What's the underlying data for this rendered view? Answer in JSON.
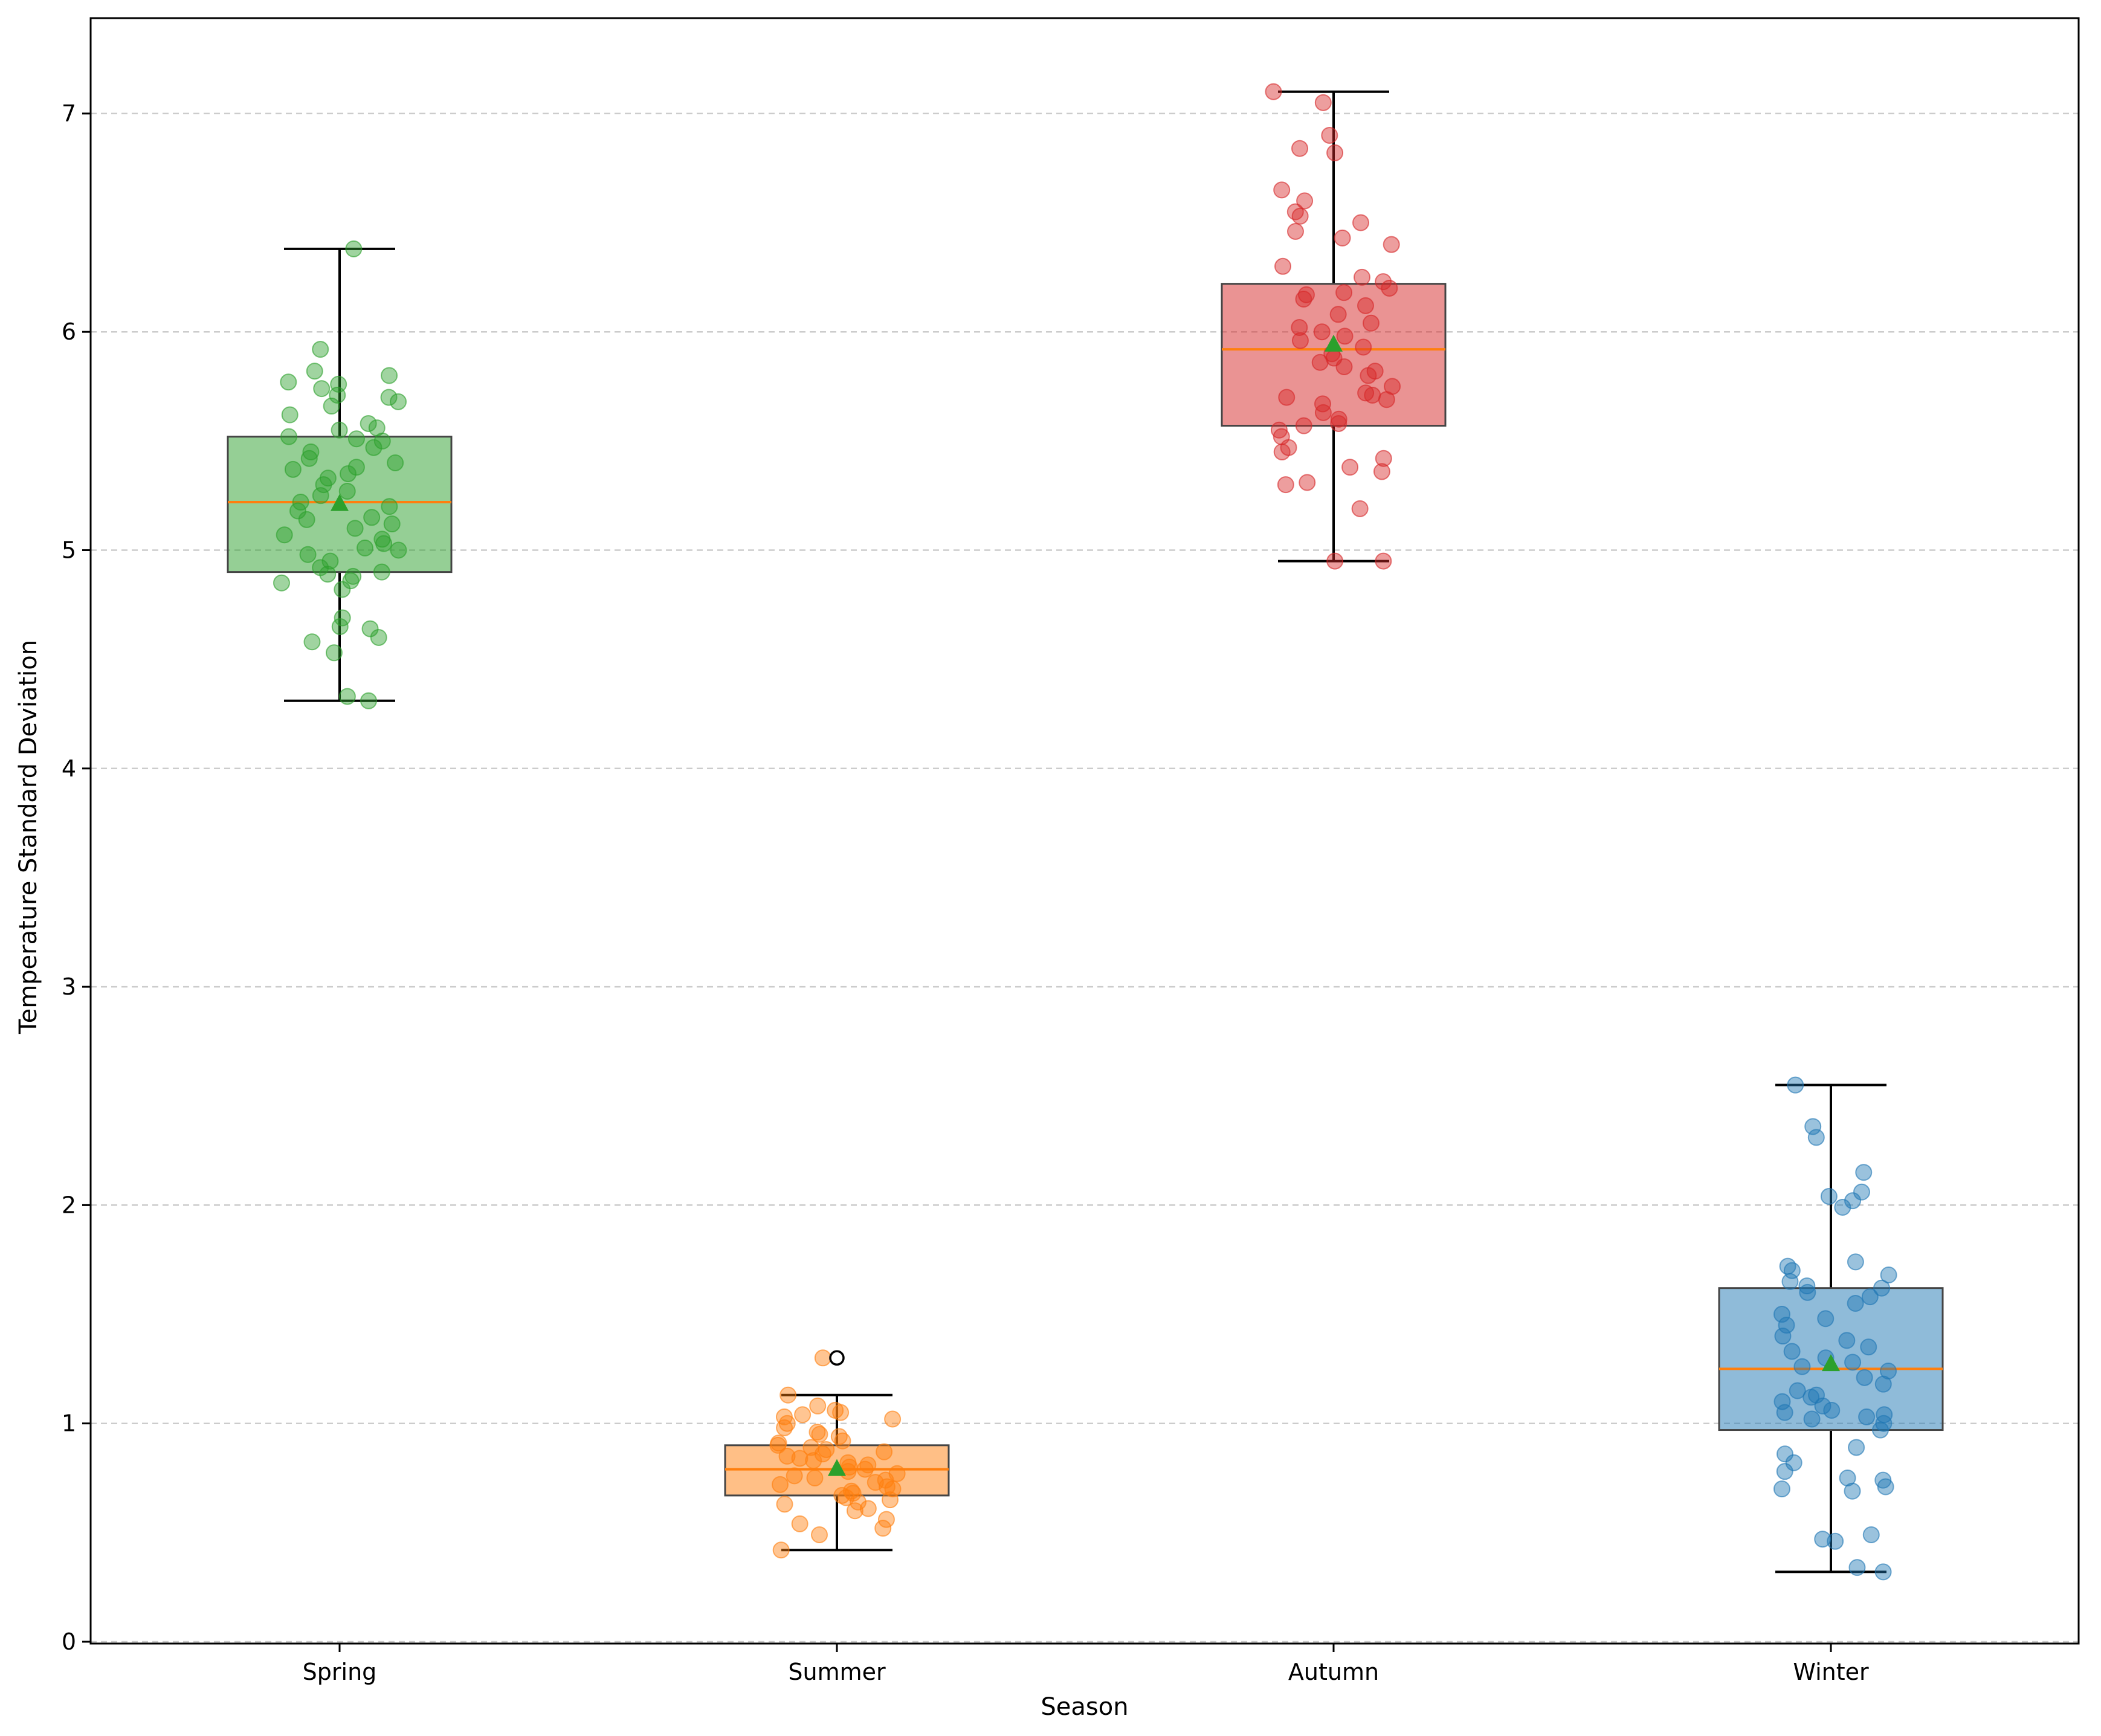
{
  "chart_data": {
    "type": "box",
    "title": "",
    "xlabel": "Season",
    "ylabel": "Temperature Standard Deviation",
    "ylim": [
      0,
      7.45
    ],
    "yticks": [
      0,
      1,
      2,
      3,
      4,
      5,
      6,
      7
    ],
    "ytick_labels": [
      "0",
      "1",
      "2",
      "3",
      "4",
      "5",
      "6",
      "7"
    ],
    "grid": "y-dashed",
    "categories": [
      "Spring",
      "Summer",
      "Autumn",
      "Winter"
    ],
    "series": [
      {
        "name": "Spring",
        "color": "#2ca02c",
        "whisker_low": 4.31,
        "q1": 4.9,
        "median": 5.22,
        "q3": 5.52,
        "whisker_high": 6.38,
        "mean": 5.21,
        "outliers": [],
        "points": [
          4.31,
          4.33,
          4.53,
          4.58,
          4.6,
          4.64,
          4.65,
          4.69,
          4.82,
          4.85,
          4.86,
          4.88,
          4.89,
          4.9,
          4.92,
          4.95,
          4.98,
          5.0,
          5.01,
          5.03,
          5.05,
          5.07,
          5.1,
          5.12,
          5.14,
          5.15,
          5.18,
          5.2,
          5.22,
          5.25,
          5.27,
          5.3,
          5.33,
          5.35,
          5.37,
          5.38,
          5.4,
          5.42,
          5.45,
          5.47,
          5.5,
          5.51,
          5.52,
          5.55,
          5.56,
          5.58,
          5.62,
          5.66,
          5.68,
          5.7,
          5.71,
          5.74,
          5.76,
          5.77,
          5.8,
          5.82,
          5.92,
          6.38
        ]
      },
      {
        "name": "Summer",
        "color": "#ff7f0e",
        "whisker_low": 0.42,
        "q1": 0.67,
        "median": 0.79,
        "q3": 0.9,
        "whisker_high": 1.13,
        "mean": 0.79,
        "outliers": [
          1.3
        ],
        "points": [
          0.42,
          0.49,
          0.52,
          0.54,
          0.56,
          0.6,
          0.61,
          0.63,
          0.64,
          0.65,
          0.66,
          0.67,
          0.68,
          0.69,
          0.7,
          0.71,
          0.72,
          0.73,
          0.74,
          0.75,
          0.76,
          0.77,
          0.78,
          0.79,
          0.8,
          0.81,
          0.82,
          0.83,
          0.84,
          0.85,
          0.86,
          0.87,
          0.88,
          0.89,
          0.9,
          0.91,
          0.92,
          0.94,
          0.95,
          0.96,
          0.98,
          1.0,
          1.02,
          1.03,
          1.04,
          1.05,
          1.06,
          1.08,
          1.13,
          1.3
        ]
      },
      {
        "name": "Autumn",
        "color": "#d62728",
        "whisker_low": 4.95,
        "q1": 5.57,
        "median": 5.92,
        "q3": 6.22,
        "whisker_high": 7.1,
        "mean": 5.94,
        "outliers": [],
        "points": [
          4.95,
          4.95,
          5.19,
          5.3,
          5.31,
          5.36,
          5.38,
          5.42,
          5.45,
          5.47,
          5.52,
          5.55,
          5.57,
          5.58,
          5.6,
          5.63,
          5.67,
          5.69,
          5.7,
          5.71,
          5.72,
          5.75,
          5.8,
          5.82,
          5.84,
          5.86,
          5.88,
          5.9,
          5.93,
          5.96,
          5.98,
          6.0,
          6.02,
          6.04,
          6.08,
          6.12,
          6.15,
          6.17,
          6.18,
          6.2,
          6.23,
          6.25,
          6.3,
          6.4,
          6.43,
          6.46,
          6.5,
          6.53,
          6.55,
          6.6,
          6.65,
          6.82,
          6.84,
          6.9,
          7.05,
          7.1
        ]
      },
      {
        "name": "Winter",
        "color": "#1f77b4",
        "whisker_low": 0.32,
        "q1": 0.97,
        "median": 1.25,
        "q3": 1.62,
        "whisker_high": 2.55,
        "mean": 1.27,
        "outliers": [],
        "points": [
          0.32,
          0.34,
          0.46,
          0.47,
          0.49,
          0.69,
          0.7,
          0.71,
          0.74,
          0.75,
          0.78,
          0.82,
          0.86,
          0.89,
          0.97,
          1.0,
          1.02,
          1.03,
          1.04,
          1.05,
          1.06,
          1.08,
          1.1,
          1.12,
          1.13,
          1.15,
          1.18,
          1.21,
          1.24,
          1.26,
          1.28,
          1.3,
          1.33,
          1.35,
          1.38,
          1.4,
          1.45,
          1.48,
          1.5,
          1.55,
          1.58,
          1.6,
          1.62,
          1.63,
          1.65,
          1.68,
          1.7,
          1.72,
          1.74,
          1.99,
          2.02,
          2.04,
          2.06,
          2.15,
          2.31,
          2.36,
          2.55
        ]
      }
    ]
  },
  "colors": {
    "median_line": "#ff7f0e",
    "mean_marker": "#2ca02c",
    "whisker": "#000000",
    "grid": "#cccccc"
  }
}
